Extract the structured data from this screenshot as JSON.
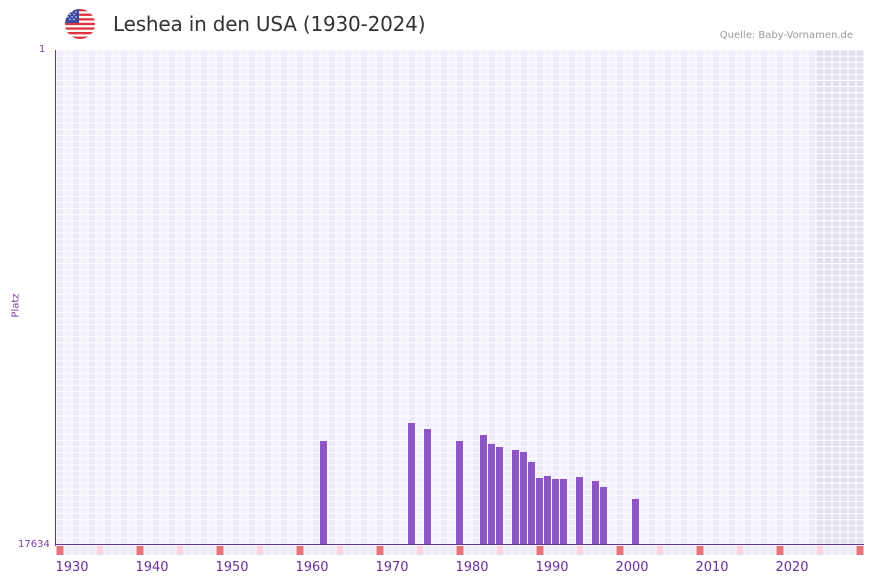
{
  "header": {
    "title": "Leshea in den USA (1930-2024)",
    "source": "Quelle: Baby-Vornamen.de",
    "flag_icon": "us-flag-icon"
  },
  "colors": {
    "bar": "#8e55c6",
    "axis": "#6b2fa0",
    "grid_a": "#efeafa",
    "grid_b": "#f4f1fc",
    "grid_line": "#ffffff",
    "future_shade": "#e4e0ee",
    "marker_decade": "#e5747c",
    "marker_half": "#f5d5df",
    "marker_default": "#f0ecfb"
  },
  "chart_data": {
    "type": "bar",
    "title": "Leshea in den USA (1930-2024)",
    "xlabel": "",
    "ylabel": "Platz",
    "y_inverted": true,
    "ylim": [
      17634,
      1
    ],
    "y_tick_labels": [
      "1",
      "17634"
    ],
    "x_range": [
      1928,
      2028
    ],
    "x_tick_labels": [
      "1930",
      "1940",
      "1950",
      "1960",
      "1970",
      "1980",
      "1990",
      "2000",
      "2010",
      "2020"
    ],
    "grid": true,
    "shaded_region_from_year": 2023,
    "categories": [
      1961,
      1972,
      1974,
      1978,
      1981,
      1982,
      1983,
      1985,
      1986,
      1987,
      1988,
      1989,
      1990,
      1991,
      1993,
      1995,
      1996,
      2000
    ],
    "values": [
      13928,
      13287,
      13501,
      13928,
      13715,
      14035,
      14142,
      14249,
      14320,
      14676,
      15246,
      15175,
      15282,
      15282,
      15211,
      15353,
      15567,
      15994
    ],
    "source": "Quelle: Baby-Vornamen.de"
  },
  "axis": {
    "y_top": "1",
    "y_bottom": "17634",
    "y_title": "Platz"
  }
}
